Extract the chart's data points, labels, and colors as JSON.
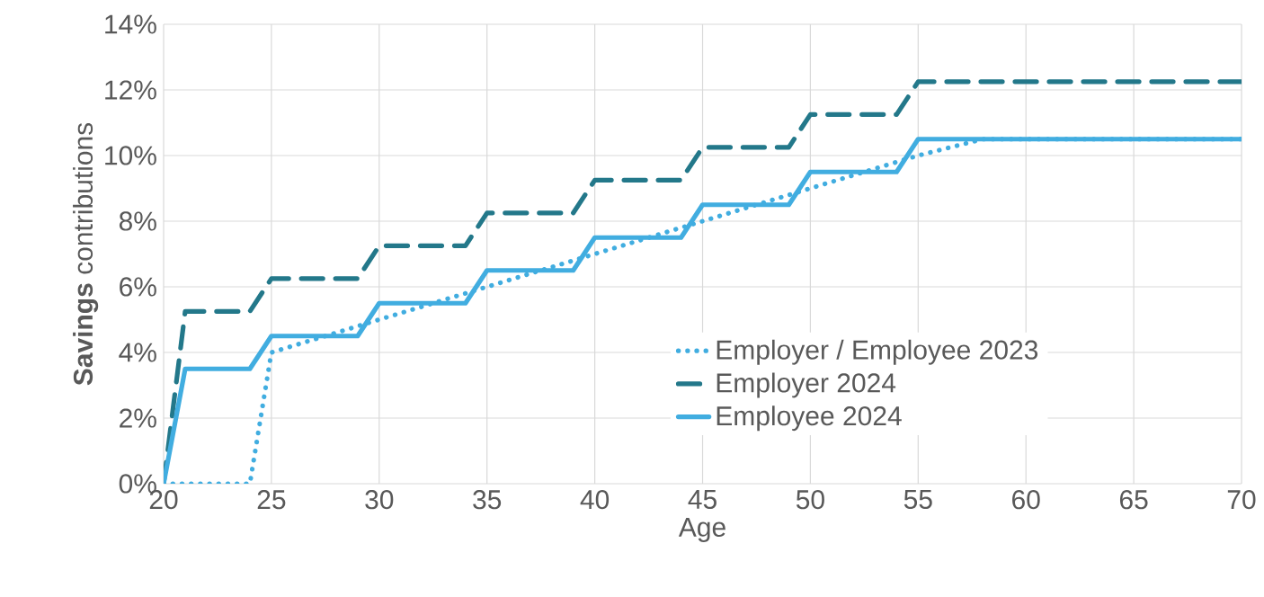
{
  "chart_data": {
    "type": "line",
    "xlabel": "Age",
    "ylabel": "**Savings** contributions",
    "xlim": [
      20,
      70
    ],
    "xticks": [
      20,
      25,
      30,
      35,
      40,
      45,
      50,
      55,
      60,
      65,
      70
    ],
    "ylim": [
      0,
      14
    ],
    "yticks": [
      {
        "value": 0,
        "label": "0%"
      },
      {
        "value": 2,
        "label": "2%"
      },
      {
        "value": 4,
        "label": "4%"
      },
      {
        "value": 6,
        "label": "6%"
      },
      {
        "value": 8,
        "label": "8%"
      },
      {
        "value": 10,
        "label": "10%"
      },
      {
        "value": 12,
        "label": "12%"
      },
      {
        "value": 14,
        "label": "14%"
      }
    ],
    "grid": true,
    "legend": "bottom right",
    "series": [
      {
        "name": "Employer / Employee 2023",
        "color": "#41ade0",
        "line_style": "dotted",
        "x": [
          20,
          24,
          25,
          35,
          45,
          55,
          58,
          70
        ],
        "values": [
          0,
          0,
          4,
          6,
          8,
          10,
          10.5,
          10.5
        ]
      },
      {
        "name": "Employer 2024",
        "color": "#23788a",
        "line_style": "dashed",
        "x": [
          20,
          21,
          24,
          25,
          29,
          30,
          34,
          35,
          39,
          40,
          44,
          45,
          49,
          50,
          54,
          55,
          70
        ],
        "values": [
          0,
          5.25,
          5.25,
          6.25,
          6.25,
          7.25,
          7.25,
          8.25,
          8.25,
          9.25,
          9.25,
          10.25,
          10.25,
          11.25,
          11.25,
          12.25,
          12.25
        ]
      },
      {
        "name": "Employee 2024",
        "color": "#41ade0",
        "line_style": "solid",
        "x": [
          20,
          21,
          24,
          25,
          29,
          30,
          34,
          35,
          39,
          40,
          44,
          45,
          49,
          50,
          54,
          55,
          70
        ],
        "values": [
          0,
          3.5,
          3.5,
          4.5,
          4.5,
          5.5,
          5.5,
          6.5,
          6.5,
          7.5,
          7.5,
          8.5,
          8.5,
          9.5,
          9.5,
          10.5,
          10.5
        ]
      }
    ]
  }
}
